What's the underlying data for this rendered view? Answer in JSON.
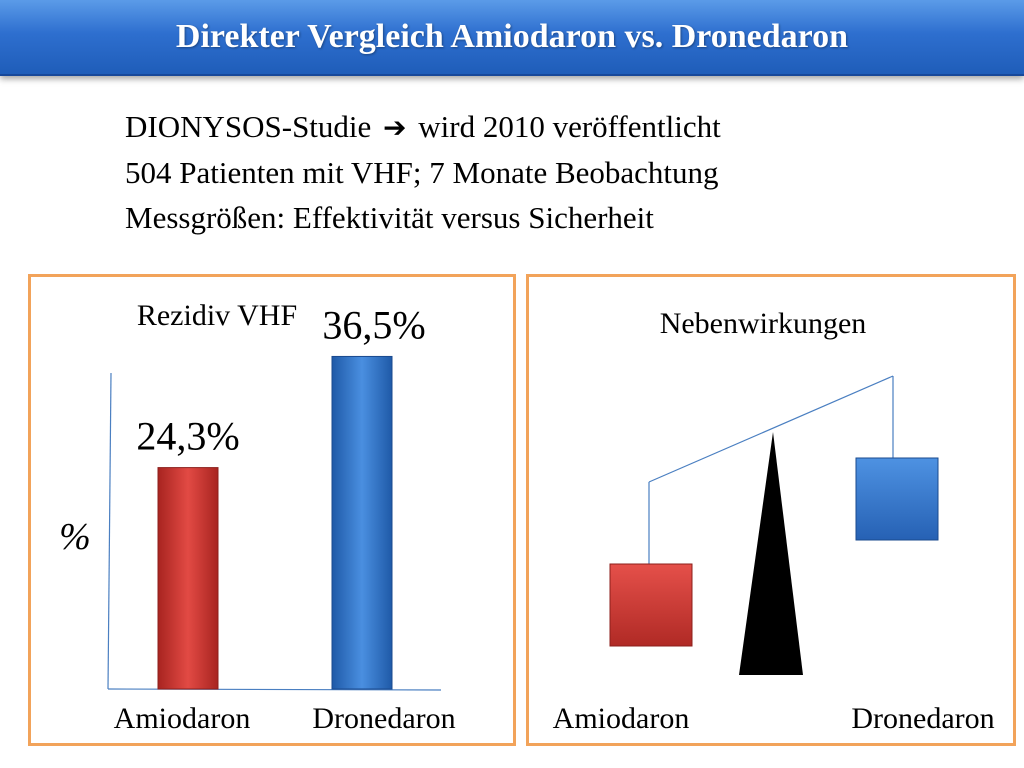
{
  "header": {
    "title": "Direkter Vergleich Amiodaron vs. Dronedaron"
  },
  "intro": {
    "line1_prefix": "DIONYSOS-Studie",
    "line1_suffix": "wird 2010 veröffentlicht",
    "line2": "504 Patienten mit VHF; 7 Monate Beobachtung",
    "line3": "Messgrößen: Effektivität versus Sicherheit"
  },
  "chart_data": [
    {
      "type": "bar",
      "title": "Rezidiv VHF",
      "ylabel": "%",
      "categories": [
        "Amiodaron",
        "Dronedaron"
      ],
      "values": [
        24.3,
        36.5
      ],
      "value_labels": [
        "24,3%",
        "36,5%"
      ],
      "colors": [
        "#d93a35",
        "#3a7fd3"
      ],
      "ylim": [
        0,
        45
      ]
    },
    {
      "type": "diagram",
      "title": "Nebenwirkungen",
      "left_label": "Amiodaron",
      "right_label": "Dronedaron",
      "left_color": "#d93a35",
      "right_color": "#3a7fd3",
      "heavier_side": "Amiodaron"
    }
  ]
}
